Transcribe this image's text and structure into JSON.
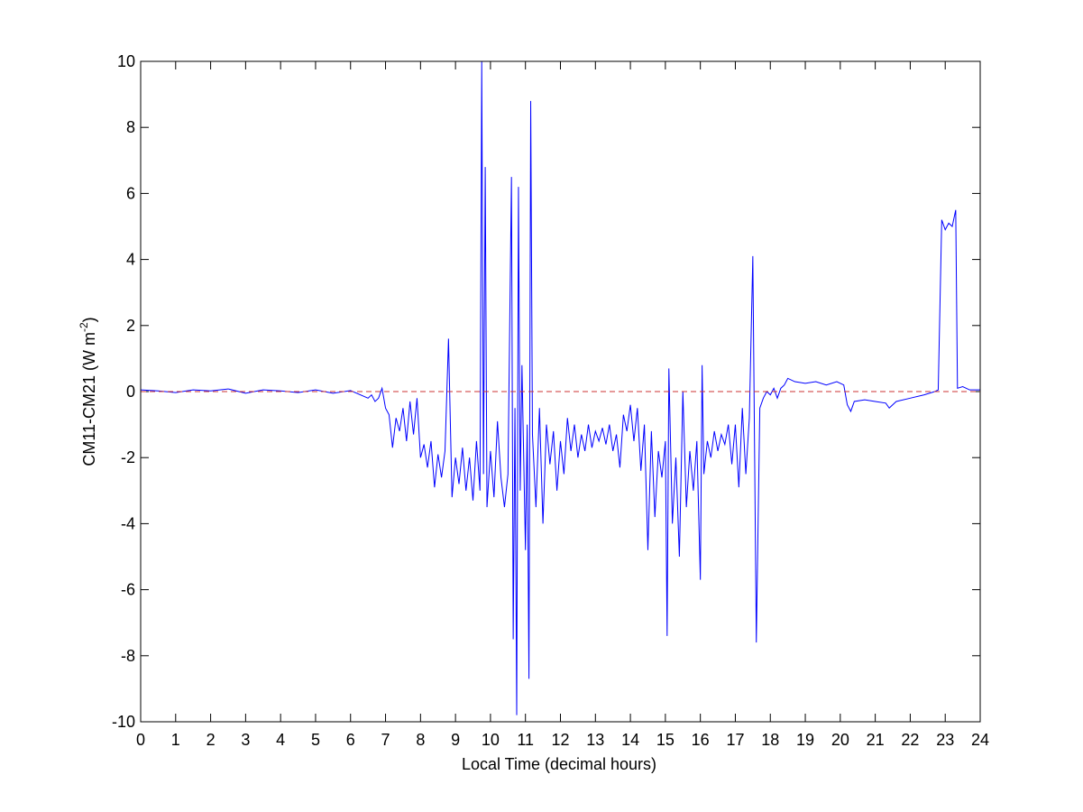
{
  "chart_data": {
    "type": "line",
    "xlabel": "Local Time (decimal hours)",
    "ylabel": {
      "text": "CM11-CM21 (W m",
      "superscript": "-2",
      "suffix": ")"
    },
    "xlim": [
      0,
      24
    ],
    "ylim": [
      -10,
      10
    ],
    "xticks": [
      0,
      1,
      2,
      3,
      4,
      5,
      6,
      7,
      8,
      9,
      10,
      11,
      12,
      13,
      14,
      15,
      16,
      17,
      18,
      19,
      20,
      21,
      22,
      23,
      24
    ],
    "yticks": [
      -10,
      -8,
      -6,
      -4,
      -2,
      0,
      2,
      4,
      6,
      8,
      10
    ],
    "reference_line": {
      "value": 0,
      "color": "#cc3333"
    },
    "x": [
      0,
      0.5,
      1,
      1.5,
      2,
      2.5,
      3,
      3.5,
      4,
      4.5,
      5,
      5.5,
      6,
      6.5,
      6.6,
      6.7,
      6.8,
      6.9,
      7.0,
      7.1,
      7.2,
      7.3,
      7.4,
      7.5,
      7.6,
      7.7,
      7.8,
      7.9,
      8.0,
      8.1,
      8.2,
      8.3,
      8.4,
      8.5,
      8.6,
      8.7,
      8.8,
      8.9,
      9.0,
      9.1,
      9.2,
      9.3,
      9.4,
      9.5,
      9.6,
      9.7,
      9.75,
      9.8,
      9.85,
      9.9,
      10.0,
      10.1,
      10.2,
      10.3,
      10.4,
      10.5,
      10.6,
      10.65,
      10.7,
      10.75,
      10.8,
      10.85,
      10.9,
      11.0,
      11.05,
      11.1,
      11.15,
      11.2,
      11.3,
      11.4,
      11.5,
      11.6,
      11.7,
      11.8,
      11.9,
      12.0,
      12.1,
      12.2,
      12.3,
      12.4,
      12.5,
      12.6,
      12.7,
      12.8,
      12.9,
      13.0,
      13.1,
      13.2,
      13.3,
      13.4,
      13.5,
      13.6,
      13.7,
      13.8,
      13.9,
      14.0,
      14.1,
      14.2,
      14.3,
      14.4,
      14.5,
      14.6,
      14.7,
      14.8,
      14.9,
      15.0,
      15.05,
      15.1,
      15.2,
      15.3,
      15.4,
      15.5,
      15.6,
      15.7,
      15.8,
      15.9,
      16.0,
      16.05,
      16.1,
      16.2,
      16.3,
      16.4,
      16.5,
      16.6,
      16.7,
      16.8,
      16.9,
      17.0,
      17.1,
      17.2,
      17.3,
      17.4,
      17.5,
      17.6,
      17.7,
      17.8,
      17.9,
      18.0,
      18.1,
      18.2,
      18.3,
      18.4,
      18.5,
      18.7,
      19,
      19.3,
      19.6,
      19.9,
      20.1,
      20.2,
      20.3,
      20.4,
      20.7,
      21,
      21.3,
      21.4,
      21.6,
      22,
      22.4,
      22.7,
      22.8,
      22.9,
      23.0,
      23.1,
      23.2,
      23.3,
      23.35,
      23.5,
      23.7,
      24
    ],
    "series": [
      {
        "color": "#0000ff",
        "values": [
          0.05,
          0.02,
          -0.03,
          0.05,
          0.02,
          0.08,
          -0.05,
          0.05,
          0.02,
          -0.03,
          0.05,
          -0.05,
          0.03,
          -0.2,
          -0.1,
          -0.3,
          -0.2,
          0.1,
          -0.5,
          -0.7,
          -1.7,
          -0.8,
          -1.2,
          -0.5,
          -1.5,
          -0.3,
          -1.3,
          -0.2,
          -2.0,
          -1.6,
          -2.3,
          -1.5,
          -2.9,
          -1.9,
          -2.6,
          -1.8,
          1.6,
          -3.2,
          -2.0,
          -2.8,
          -1.7,
          -3.0,
          -2.0,
          -3.3,
          -1.5,
          -3.0,
          10,
          -2.5,
          6.8,
          -3.5,
          -1.8,
          -3.2,
          -0.9,
          -2.6,
          -3.5,
          -2.5,
          6.5,
          -7.5,
          -0.5,
          -9.8,
          6.2,
          -3.0,
          0.8,
          -4.8,
          -1.0,
          -8.7,
          8.8,
          -1.3,
          -3.5,
          -0.5,
          -4.0,
          -1.0,
          -2.2,
          -1.2,
          -3.0,
          -1.5,
          -2.5,
          -0.8,
          -1.8,
          -1.0,
          -2.0,
          -1.3,
          -1.8,
          -1.0,
          -1.7,
          -1.2,
          -1.5,
          -1.1,
          -1.6,
          -1.0,
          -1.8,
          -1.3,
          -2.3,
          -0.7,
          -1.2,
          -0.4,
          -1.5,
          -0.5,
          -2.4,
          -1.0,
          -4.8,
          -1.2,
          -3.8,
          -1.8,
          -2.6,
          -1.5,
          -7.4,
          0.7,
          -4.0,
          -2.0,
          -5.0,
          0.0,
          -3.5,
          -1.8,
          -3.0,
          -1.5,
          -5.7,
          0.8,
          -2.5,
          -1.5,
          -2.0,
          -1.2,
          -1.8,
          -1.3,
          -1.6,
          -1.0,
          -2.2,
          -1.0,
          -2.9,
          -0.5,
          -2.5,
          -0.8,
          4.1,
          -7.6,
          -0.5,
          -0.2,
          0.0,
          -0.1,
          0.1,
          -0.2,
          0.1,
          0.2,
          0.4,
          0.3,
          0.25,
          0.3,
          0.2,
          0.3,
          0.2,
          -0.4,
          -0.6,
          -0.3,
          -0.25,
          -0.3,
          -0.35,
          -0.5,
          -0.3,
          -0.2,
          -0.1,
          0.0,
          0.05,
          5.2,
          4.9,
          5.1,
          5.0,
          5.5,
          0.1,
          0.15,
          0.05,
          0.05
        ]
      }
    ]
  }
}
